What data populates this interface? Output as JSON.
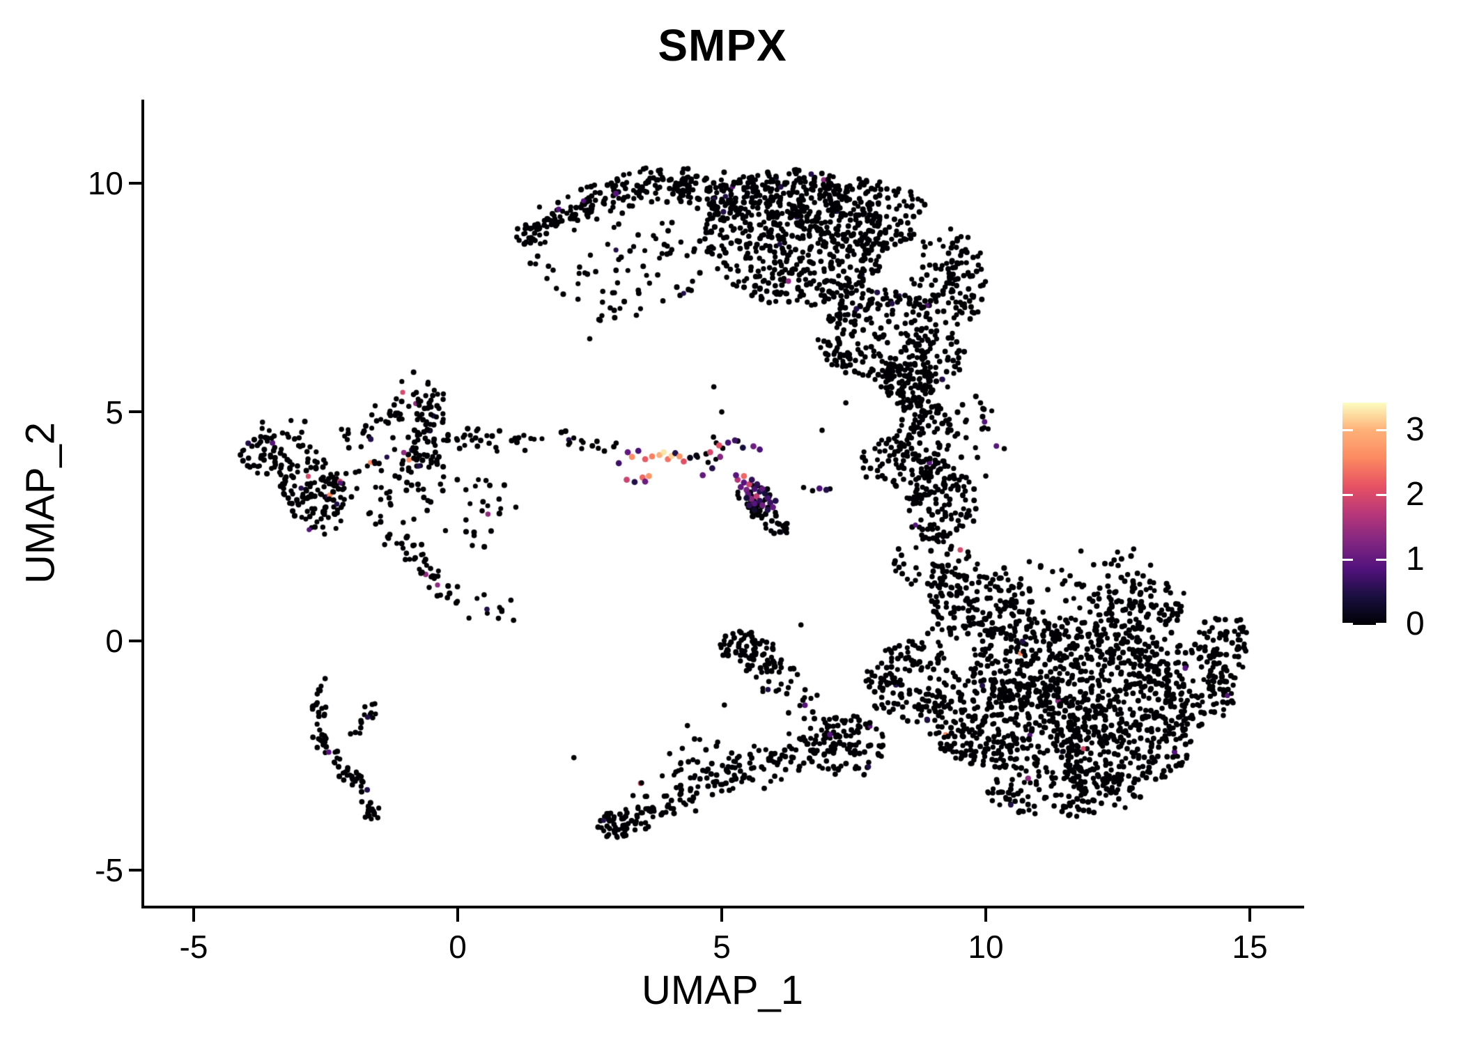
{
  "chart_data": {
    "type": "scatter",
    "title": "SMPX",
    "xlabel": "UMAP_1",
    "ylabel": "UMAP_2",
    "x_ticks": [
      -5,
      0,
      5,
      10,
      15
    ],
    "y_ticks": [
      10,
      5,
      0,
      -5
    ],
    "xlim": [
      -5.97,
      16.03
    ],
    "ylim": [
      -5.82,
      11.83
    ],
    "grid": false,
    "background": "#ffffff",
    "point_color_default": "#000004",
    "point_radius_px": 3.8,
    "legend": {
      "position": "right",
      "ticks": [
        3,
        2,
        1,
        0
      ],
      "min": 0,
      "max": 3.43
    },
    "color_scale": {
      "name": "magma",
      "min": 0,
      "max": 3.43,
      "stops": [
        [
          0.0,
          "#000004"
        ],
        [
          0.125,
          "#180f3e"
        ],
        [
          0.25,
          "#51127c"
        ],
        [
          0.375,
          "#822681"
        ],
        [
          0.5,
          "#b73779"
        ],
        [
          0.625,
          "#e75263"
        ],
        [
          0.75,
          "#fc8961"
        ],
        [
          0.875,
          "#feb078"
        ],
        [
          1.0,
          "#fcfdbf"
        ]
      ]
    },
    "tint_levels": [
      [
        0.5,
        0.5
      ],
      [
        0.9,
        0.3
      ],
      [
        1.4,
        0.12
      ],
      [
        2.0,
        0.05
      ],
      [
        2.6,
        0.03
      ]
    ],
    "clusters": [
      {
        "k": "l",
        "x1": 1.15,
        "y1": 8.75,
        "x2": 2.7,
        "y2": 9.65,
        "w": 0.3,
        "n": 90,
        "tint": 0.012
      },
      {
        "k": "l",
        "x1": 2.7,
        "y1": 9.65,
        "x2": 4.4,
        "y2": 10.15,
        "w": 0.42,
        "n": 95,
        "tint": 0.012
      },
      {
        "k": "b",
        "cx": 6.4,
        "cy": 8.8,
        "rx": 1.75,
        "ry": 1.5,
        "rot": -8,
        "n": 580,
        "tint": 0.012
      },
      {
        "k": "b",
        "cx": 7.6,
        "cy": 9.3,
        "rx": 1.3,
        "ry": 0.8,
        "rot": 0,
        "n": 200,
        "tint": 0.012
      },
      {
        "k": "b",
        "cx": 5.0,
        "cy": 9.8,
        "rx": 0.95,
        "ry": 0.45,
        "rot": -5,
        "n": 95,
        "tint": 0.012
      },
      {
        "k": "b",
        "cx": 7.9,
        "cy": 6.7,
        "rx": 1.1,
        "ry": 1.0,
        "rot": 0,
        "n": 210,
        "tint": 0.012
      },
      {
        "k": "b",
        "cx": 8.55,
        "cy": 5.7,
        "rx": 0.5,
        "ry": 0.55,
        "rot": 0,
        "n": 48,
        "tint": 0.012
      },
      {
        "k": "b",
        "cx": 3.6,
        "cy": 8.3,
        "rx": 1.15,
        "ry": 0.95,
        "rot": 0,
        "n": 45,
        "tint": 0.01
      },
      {
        "k": "b",
        "cx": 2.9,
        "cy": 7.4,
        "rx": 0.7,
        "ry": 0.45,
        "rot": 0,
        "n": 14,
        "tint": 0.01
      },
      {
        "k": "l",
        "x1": 1.5,
        "y1": 8.4,
        "x2": 2.5,
        "y2": 7.7,
        "w": 0.5,
        "n": 15,
        "tint": 0.01
      },
      {
        "k": "b",
        "cx": 9.3,
        "cy": 7.9,
        "rx": 0.75,
        "ry": 1.1,
        "rot": 0,
        "n": 120,
        "tint": 0.012
      },
      {
        "k": "b",
        "cx": 9.0,
        "cy": 6.2,
        "rx": 0.6,
        "ry": 0.8,
        "rot": 0,
        "n": 60,
        "tint": 0.012
      },
      {
        "k": "b",
        "cx": 8.45,
        "cy": 5.5,
        "rx": 0.45,
        "ry": 0.45,
        "rot": 0,
        "n": 42,
        "tint": 0.015
      },
      {
        "k": "b",
        "cx": 8.8,
        "cy": 4.4,
        "rx": 0.6,
        "ry": 0.85,
        "rot": 0,
        "n": 115,
        "tint": 0.015
      },
      {
        "k": "b",
        "cx": 9.15,
        "cy": 3.0,
        "rx": 0.7,
        "ry": 0.85,
        "rot": 0,
        "n": 125,
        "tint": 0.015
      },
      {
        "k": "b",
        "cx": 8.1,
        "cy": 3.9,
        "rx": 0.45,
        "ry": 0.6,
        "rot": 0,
        "n": 38,
        "tint": 0.015
      },
      {
        "k": "b",
        "cx": 9.8,
        "cy": 4.6,
        "rx": 0.55,
        "ry": 0.8,
        "rot": 0,
        "n": 20,
        "tint": 0.015
      },
      {
        "k": "b",
        "cx": 9.0,
        "cy": 1.7,
        "rx": 0.8,
        "ry": 0.6,
        "rot": 0,
        "n": 48,
        "tint": 0.015
      },
      {
        "k": "b",
        "cx": 9.9,
        "cy": 0.9,
        "rx": 1.0,
        "ry": 0.8,
        "rot": 0,
        "n": 150,
        "tint": 0.008
      },
      {
        "k": "b",
        "cx": 11.6,
        "cy": -0.5,
        "rx": 1.9,
        "ry": 1.1,
        "rot": 0,
        "n": 440,
        "tint": 0.008
      },
      {
        "k": "b",
        "cx": 10.4,
        "cy": -1.8,
        "rx": 1.5,
        "ry": 1.0,
        "rot": 0,
        "n": 320,
        "tint": 0.008
      },
      {
        "k": "b",
        "cx": 12.6,
        "cy": -2.3,
        "rx": 1.3,
        "ry": 0.85,
        "rot": 0,
        "n": 240,
        "tint": 0.008
      },
      {
        "k": "b",
        "cx": 8.6,
        "cy": -0.9,
        "rx": 0.9,
        "ry": 0.9,
        "rot": 0,
        "n": 135,
        "tint": 0.008
      },
      {
        "k": "b",
        "cx": 11.5,
        "cy": -3.3,
        "rx": 1.5,
        "ry": 0.55,
        "rot": 0,
        "n": 145,
        "tint": 0.008
      },
      {
        "k": "b",
        "cx": 13.9,
        "cy": -1.0,
        "rx": 0.85,
        "ry": 0.95,
        "rot": 0,
        "n": 155,
        "tint": 0.008
      },
      {
        "k": "b",
        "cx": 14.5,
        "cy": -0.1,
        "rx": 0.5,
        "ry": 0.75,
        "rot": 0,
        "n": 58,
        "tint": 0.008
      },
      {
        "k": "b",
        "cx": 12.9,
        "cy": 0.8,
        "rx": 1.0,
        "ry": 0.55,
        "rot": 0,
        "n": 100,
        "tint": 0.008
      },
      {
        "k": "b",
        "cx": 12.0,
        "cy": 1.7,
        "rx": 1.2,
        "ry": 0.5,
        "rot": 0,
        "n": 26,
        "tint": 0.008
      },
      {
        "k": "b",
        "cx": 7.4,
        "cy": -2.3,
        "rx": 0.7,
        "ry": 0.7,
        "rot": 0,
        "n": 78,
        "tint": 0.008
      },
      {
        "k": "b",
        "cx": 11.2,
        "cy": -0.9,
        "rx": 2.7,
        "ry": 2.3,
        "rot": 0,
        "n": 170,
        "tint": 0.008
      },
      {
        "k": "b",
        "cx": 5.55,
        "cy": -0.25,
        "rx": 0.62,
        "ry": 0.42,
        "rot": -25,
        "n": 80,
        "tint": 0.012
      },
      {
        "k": "b",
        "cx": 6.1,
        "cy": -0.8,
        "rx": 0.5,
        "ry": 0.4,
        "rot": 0,
        "n": 18,
        "tint": 0.012
      },
      {
        "k": "l",
        "x1": 6.3,
        "y1": -1.2,
        "x2": 7.2,
        "y2": -1.9,
        "w": 0.4,
        "n": 20,
        "tint": 0.012
      },
      {
        "k": "b",
        "cx": 2.95,
        "cy": -4.05,
        "rx": 0.32,
        "ry": 0.3,
        "rot": 0,
        "n": 38,
        "tint": 0.012
      },
      {
        "k": "l",
        "x1": 3.2,
        "y1": -3.95,
        "x2": 5.6,
        "y2": -2.75,
        "w": 0.33,
        "n": 95,
        "tint": 0.012
      },
      {
        "k": "l",
        "x1": 5.6,
        "y1": -2.75,
        "x2": 7.2,
        "y2": -2.05,
        "w": 0.5,
        "n": 80,
        "tint": 0.012
      },
      {
        "k": "b",
        "cx": 4.6,
        "cy": -2.6,
        "rx": 0.8,
        "ry": 0.5,
        "rot": 0,
        "n": 18,
        "tint": 0.012
      },
      {
        "k": "l",
        "x1": 3.4,
        "y1": -3.35,
        "x2": 4.4,
        "y2": -2.6,
        "w": 0.3,
        "n": 15,
        "tint": 0.012
      },
      {
        "k": "b",
        "cx": -3.7,
        "cy": 4.05,
        "rx": 0.42,
        "ry": 0.42,
        "rot": 0,
        "n": 42,
        "tint": 0.035
      },
      {
        "k": "b",
        "cx": -2.75,
        "cy": 3.3,
        "rx": 0.6,
        "ry": 1.0,
        "rot": 15,
        "n": 135,
        "tint": 0.035
      },
      {
        "k": "l",
        "x1": -0.75,
        "y1": 5.7,
        "x2": -0.55,
        "y2": 3.4,
        "w": 0.5,
        "n": 85,
        "tint": 0.035
      },
      {
        "k": "l",
        "x1": -2.2,
        "y1": 4.5,
        "x2": -0.9,
        "y2": 5.0,
        "w": 0.3,
        "n": 26,
        "tint": 0.035
      },
      {
        "k": "l",
        "x1": -0.2,
        "y1": 4.5,
        "x2": 1.6,
        "y2": 4.4,
        "w": 0.27,
        "n": 32,
        "tint": 0.035
      },
      {
        "k": "l",
        "x1": -1.5,
        "y1": 2.7,
        "x2": -0.1,
        "y2": 1.0,
        "w": 0.34,
        "n": 48,
        "tint": 0.035
      },
      {
        "k": "l",
        "x1": 0.0,
        "y1": 0.95,
        "x2": 1.0,
        "y2": 0.55,
        "w": 0.25,
        "n": 14,
        "tint": 0.035
      },
      {
        "k": "b",
        "cx": -1.5,
        "cy": 3.9,
        "rx": 1.2,
        "ry": 1.0,
        "rot": 0,
        "n": 58,
        "tint": 0.035
      },
      {
        "k": "b",
        "cx": 0.3,
        "cy": 3.0,
        "rx": 0.9,
        "ry": 1.0,
        "rot": 0,
        "n": 28,
        "tint": 0.035
      },
      {
        "k": "b",
        "cx": -3.3,
        "cy": 4.6,
        "rx": 0.5,
        "ry": 0.35,
        "rot": 0,
        "n": 13,
        "tint": 0.035
      },
      {
        "k": "l",
        "x1": -2.62,
        "y1": -0.85,
        "x2": -2.6,
        "y2": -2.2,
        "w": 0.16,
        "n": 26,
        "tint": 0.03
      },
      {
        "k": "l",
        "x1": -2.55,
        "y1": -2.2,
        "x2": -1.62,
        "y2": -3.6,
        "w": 0.18,
        "n": 42,
        "tint": 0.03
      },
      {
        "k": "b",
        "cx": -1.62,
        "cy": -3.75,
        "rx": 0.18,
        "ry": 0.18,
        "rot": 0,
        "n": 13,
        "tint": 0.03
      },
      {
        "k": "l",
        "x1": -2.05,
        "y1": -2.1,
        "x2": -1.55,
        "y2": -1.45,
        "w": 0.15,
        "n": 15,
        "tint": 0.03
      },
      {
        "k": "b",
        "cx": 5.85,
        "cy": 2.7,
        "rx": 0.55,
        "ry": 0.25,
        "rot": -40,
        "n": 46,
        "tint": 0.05
      },
      {
        "k": "b",
        "cx": 5.6,
        "cy": 3.15,
        "rx": 0.35,
        "ry": 0.35,
        "rot": 0,
        "n": 20,
        "tint": 0.05
      },
      {
        "k": "l",
        "x1": 4.55,
        "y1": 3.95,
        "x2": 5.15,
        "y2": 4.35,
        "w": 0.25,
        "n": 8,
        "tint": 0.05
      },
      {
        "k": "l",
        "x1": 1.9,
        "y1": 4.5,
        "x2": 3.1,
        "y2": 4.15,
        "w": 0.28,
        "n": 14,
        "tint": 0.03
      }
    ],
    "highlight_points": [
      [
        3.22,
        4.12,
        1.0
      ],
      [
        3.3,
        4.02,
        2.6
      ],
      [
        3.42,
        4.15,
        0.8
      ],
      [
        3.55,
        3.97,
        2.2
      ],
      [
        3.68,
        4.03,
        2.5
      ],
      [
        3.82,
        4.06,
        3.0
      ],
      [
        3.9,
        4.12,
        3.3
      ],
      [
        3.98,
        3.97,
        2.4
      ],
      [
        4.05,
        4.04,
        3.2
      ],
      [
        4.12,
        4.1,
        0.5
      ],
      [
        4.2,
        4.03,
        2.7
      ],
      [
        4.28,
        3.92,
        2.1
      ],
      [
        4.4,
        4.0,
        0.15
      ],
      [
        4.52,
        4.05,
        0.1
      ],
      [
        3.5,
        3.57,
        2.3
      ],
      [
        3.62,
        3.6,
        2.7
      ],
      [
        3.55,
        3.48,
        1.1
      ],
      [
        3.35,
        3.47,
        0.5
      ],
      [
        3.2,
        3.52,
        1.9
      ],
      [
        3.05,
        3.88,
        0.7
      ],
      [
        4.78,
        4.12,
        2.0
      ],
      [
        4.95,
        4.27,
        2.1
      ],
      [
        4.97,
        4.02,
        1.3
      ],
      [
        5.12,
        4.33,
        0.8
      ],
      [
        5.25,
        4.38,
        0.7
      ],
      [
        5.4,
        4.22,
        0.4
      ],
      [
        5.6,
        4.25,
        1.1
      ],
      [
        5.72,
        4.18,
        0.8
      ],
      [
        5.3,
        3.52,
        1.7
      ],
      [
        5.36,
        3.36,
        1.0
      ],
      [
        5.42,
        3.46,
        0.9
      ],
      [
        5.47,
        3.3,
        1.2
      ],
      [
        5.52,
        3.42,
        1.9
      ],
      [
        5.57,
        3.52,
        0.6
      ],
      [
        5.5,
        3.2,
        1.0
      ],
      [
        5.62,
        3.32,
        0.8
      ],
      [
        5.67,
        3.42,
        0.6
      ],
      [
        5.56,
        3.1,
        1.3
      ],
      [
        5.66,
        3.16,
        1.8
      ],
      [
        5.72,
        3.26,
        0.5
      ],
      [
        5.77,
        3.32,
        1.0
      ],
      [
        5.62,
        3.0,
        0.9
      ],
      [
        5.72,
        3.06,
        0.6
      ],
      [
        5.77,
        2.96,
        1.1
      ],
      [
        5.87,
        3.12,
        0.8
      ],
      [
        5.82,
        3.22,
        0.4
      ],
      [
        5.92,
        3.02,
        0.7
      ],
      [
        5.87,
        2.86,
        0.5
      ],
      [
        5.97,
        2.92,
        1.0
      ],
      [
        5.62,
        2.86,
        0.3
      ],
      [
        5.52,
        2.96,
        0.6
      ],
      [
        5.47,
        3.12,
        0.4
      ],
      [
        6.02,
        3.06,
        0.5
      ],
      [
        5.42,
        3.6,
        2.3
      ],
      [
        5.27,
        3.62,
        0.9
      ],
      [
        4.82,
        3.77,
        0.5
      ],
      [
        4.64,
        3.62,
        1.0
      ],
      [
        6.85,
        3.33,
        0.8
      ],
      [
        6.98,
        3.3,
        0.5
      ]
    ],
    "outlier_points": [
      [
        4.85,
        5.55
      ],
      [
        5.0,
        5.0
      ],
      [
        6.55,
        3.35
      ],
      [
        6.72,
        3.28
      ],
      [
        7.05,
        3.32
      ],
      [
        3.0,
        4.32
      ],
      [
        2.5,
        6.6
      ],
      [
        6.9,
        4.6
      ],
      [
        7.35,
        5.2
      ],
      [
        10.0,
        3.6
      ],
      [
        10.35,
        4.2
      ],
      [
        9.9,
        5.2
      ],
      [
        6.5,
        0.35
      ],
      [
        5.05,
        -1.4
      ],
      [
        4.35,
        -1.85
      ],
      [
        2.2,
        -2.55
      ]
    ]
  }
}
